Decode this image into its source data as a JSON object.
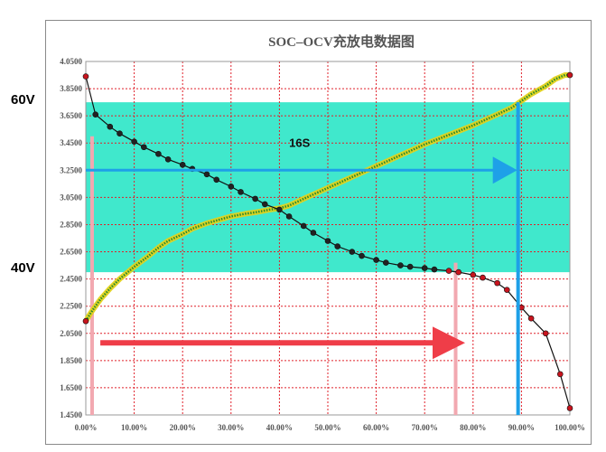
{
  "side_labels": {
    "top": "60V",
    "bottom": "40V"
  },
  "chart_data": {
    "type": "scatter",
    "title": "SOC–OCV充放电数据图",
    "xlabel": "",
    "ylabel": "",
    "xlim": [
      0,
      100
    ],
    "ylim": [
      1.45,
      4.05
    ],
    "x_ticks": [
      "0.00%",
      "10.00%",
      "20.00%",
      "30.00%",
      "40.00%",
      "50.00%",
      "60.00%",
      "70.00%",
      "80.00%",
      "90.00%",
      "100.00%"
    ],
    "y_ticks": [
      "1.4500",
      "1.6500",
      "1.8500",
      "2.0500",
      "2.2500",
      "2.4500",
      "2.6500",
      "2.8500",
      "3.0500",
      "3.2500",
      "3.4500",
      "3.6500",
      "3.8500",
      "4.0500"
    ],
    "grid": true,
    "grid_color": "#e0202a",
    "band": {
      "y_range": [
        2.5,
        3.75
      ],
      "color": "#40e8cc"
    },
    "band_annotation": "16S",
    "colors": {
      "charge": "#2c8a2c",
      "charge_marker": "#e3d21a",
      "discharge": "#111111",
      "discharge_marker": "#c8141e",
      "blue_arrow": "#1ea0e8",
      "red_arrow": "#ef3d48",
      "pink_line": "#f2a8b0"
    },
    "series": [
      {
        "x": [
          0,
          1,
          2,
          3,
          5,
          7,
          10,
          13,
          15,
          17,
          20,
          22,
          25,
          28,
          30,
          33,
          35,
          38,
          40,
          42,
          45,
          50,
          55,
          60,
          65,
          70,
          75,
          80,
          85,
          88,
          90,
          92,
          95,
          97,
          99,
          100
        ],
        "y": [
          2.14,
          2.2,
          2.25,
          2.3,
          2.38,
          2.45,
          2.54,
          2.62,
          2.68,
          2.73,
          2.78,
          2.82,
          2.86,
          2.89,
          2.91,
          2.93,
          2.94,
          2.96,
          2.97,
          2.99,
          3.04,
          3.12,
          3.2,
          3.28,
          3.36,
          3.44,
          3.51,
          3.58,
          3.66,
          3.71,
          3.76,
          3.81,
          3.87,
          3.92,
          3.95,
          3.95
        ]
      },
      {
        "x": [
          0,
          2,
          5,
          7,
          10,
          12,
          15,
          17,
          20,
          22,
          25,
          27,
          30,
          32,
          35,
          37,
          40,
          42,
          45,
          47,
          50,
          52,
          55,
          57,
          60,
          62,
          65,
          67,
          70,
          72,
          75,
          77,
          80,
          82,
          85,
          87,
          90,
          92,
          95,
          98,
          100
        ],
        "y": [
          3.94,
          3.66,
          3.57,
          3.52,
          3.46,
          3.42,
          3.37,
          3.33,
          3.29,
          3.26,
          3.22,
          3.18,
          3.13,
          3.09,
          3.04,
          3.0,
          2.96,
          2.91,
          2.84,
          2.79,
          2.73,
          2.69,
          2.65,
          2.62,
          2.59,
          2.57,
          2.55,
          2.54,
          2.53,
          2.52,
          2.51,
          2.5,
          2.48,
          2.46,
          2.42,
          2.37,
          2.24,
          2.16,
          2.05,
          1.75,
          1.5
        ]
      }
    ],
    "annotations": [
      {
        "type": "arrow",
        "color": "blue",
        "from": [
          0,
          3.25
        ],
        "to": [
          88,
          3.25
        ]
      },
      {
        "type": "vline",
        "color": "blue",
        "x": 89.3,
        "y_range": [
          1.45,
          3.75
        ]
      },
      {
        "type": "arrow",
        "color": "red",
        "from": [
          3,
          1.98
        ],
        "to": [
          75,
          1.98
        ]
      },
      {
        "type": "vline",
        "color": "pink",
        "x": 1.3,
        "y_range": [
          1.45,
          3.5
        ]
      },
      {
        "type": "vline",
        "color": "pink",
        "x": 76.4,
        "y_range": [
          1.45,
          2.57
        ]
      }
    ]
  }
}
